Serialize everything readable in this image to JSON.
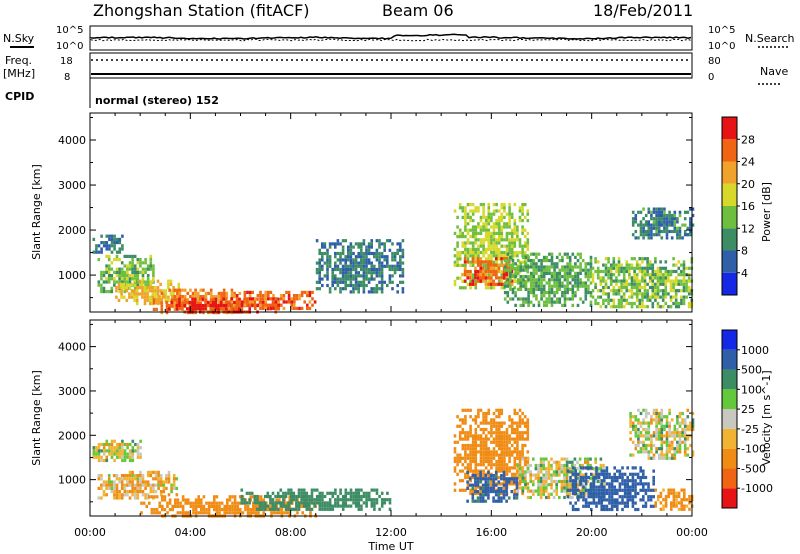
{
  "header": {
    "station": "Zhongshan Station (fitACF)",
    "beam": "Beam 06",
    "date": "18/Feb/2011"
  },
  "strip_panels": {
    "nsky_label": "N.Sky",
    "nsky_ticks": [
      "10^5",
      "10^0"
    ],
    "nsearch_label": "N.Search",
    "nsearch_ticks": [
      "10^5",
      "10^0"
    ],
    "freq_label_line1": "Freq.",
    "freq_label_line2": "[MHz]",
    "freq_ticks": [
      "18",
      "8"
    ],
    "nave_label": "Nave",
    "nave_ticks": [
      "80",
      "0"
    ],
    "cpid_label": "CPID",
    "cpid_text": "normal (stereo) 152"
  },
  "axes": {
    "xlabel": "Time UT",
    "ylabel": "Slant Range [km]",
    "x_ticks": [
      "00:00",
      "04:00",
      "08:00",
      "12:00",
      "16:00",
      "20:00",
      "00:00"
    ],
    "y_ticks": [
      "1000",
      "2000",
      "3000",
      "4000"
    ]
  },
  "colors": {
    "power": [
      "#1428e6",
      "#2f5fa8",
      "#3c8c64",
      "#6fbf3f",
      "#d8d82a",
      "#f0a22a",
      "#f06414",
      "#e61414"
    ],
    "velocity": [
      "#e61414",
      "#f06414",
      "#f08c14",
      "#f0b432",
      "#c8c8c0",
      "#64c83c",
      "#3c8c64",
      "#2f5fa8",
      "#1428e6"
    ]
  },
  "chart_data": [
    {
      "type": "heatmap",
      "title": "Power",
      "xlabel": "Time UT",
      "ylabel": "Slant Range [km]",
      "x_range_hours": [
        0,
        24
      ],
      "y_range_km": [
        180,
        4600
      ],
      "colorbar_label": "Power [dB]",
      "colorbar_ticks": [
        "4",
        "8",
        "12",
        "16",
        "20",
        "24",
        "28"
      ],
      "colorbar_range": [
        0,
        32
      ],
      "regions": [
        {
          "t": [
            0.1,
            1.3
          ],
          "r": [
            1500,
            1900
          ],
          "v": 8
        },
        {
          "t": [
            0.3,
            2.5
          ],
          "r": [
            650,
            1450
          ],
          "v": 14
        },
        {
          "t": [
            1.0,
            3.5
          ],
          "r": [
            400,
            900
          ],
          "v": 20
        },
        {
          "t": [
            2.5,
            6.0
          ],
          "r": [
            200,
            700
          ],
          "v": 24
        },
        {
          "t": [
            3.0,
            7.5
          ],
          "r": [
            200,
            500
          ],
          "v": 29
        },
        {
          "t": [
            5.5,
            9.0
          ],
          "r": [
            250,
            650
          ],
          "v": 26
        },
        {
          "t": [
            9.0,
            12.5
          ],
          "r": [
            600,
            1800
          ],
          "v": 8
        },
        {
          "t": [
            14.5,
            17.5
          ],
          "r": [
            700,
            2600
          ],
          "v": 16
        },
        {
          "t": [
            14.8,
            16.8
          ],
          "r": [
            800,
            1400
          ],
          "v": 26
        },
        {
          "t": [
            16.5,
            20.0
          ],
          "r": [
            300,
            1500
          ],
          "v": 12
        },
        {
          "t": [
            20.0,
            24.0
          ],
          "r": [
            300,
            1400
          ],
          "v": 14
        },
        {
          "t": [
            21.5,
            24.0
          ],
          "r": [
            1800,
            2500
          ],
          "v": 9
        }
      ]
    },
    {
      "type": "heatmap",
      "title": "Velocity",
      "xlabel": "Time UT",
      "ylabel": "Slant Range [km]",
      "x_range_hours": [
        0,
        24
      ],
      "y_range_km": [
        180,
        4600
      ],
      "colorbar_label": "Velocity [m s^-1]",
      "colorbar_ticks": [
        "1000",
        "500",
        "100",
        "25",
        "-25",
        "-100",
        "-500",
        "-1000"
      ],
      "regions": [
        {
          "t": [
            0.1,
            2.0
          ],
          "r": [
            1400,
            1900
          ],
          "v": 0
        },
        {
          "t": [
            0.3,
            3.5
          ],
          "r": [
            600,
            1200
          ],
          "v": -80
        },
        {
          "t": [
            2.0,
            9.0
          ],
          "r": [
            200,
            650
          ],
          "v": -300
        },
        {
          "t": [
            6.0,
            12.0
          ],
          "r": [
            300,
            800
          ],
          "v": 300
        },
        {
          "t": [
            14.5,
            17.5
          ],
          "r": [
            700,
            2600
          ],
          "v": -300
        },
        {
          "t": [
            15.0,
            17.0
          ],
          "r": [
            500,
            1200
          ],
          "v": 600
        },
        {
          "t": [
            17.0,
            20.5
          ],
          "r": [
            600,
            1500
          ],
          "v": 0
        },
        {
          "t": [
            19.0,
            22.5
          ],
          "r": [
            300,
            1300
          ],
          "v": 700
        },
        {
          "t": [
            21.5,
            24.0
          ],
          "r": [
            1500,
            2600
          ],
          "v": 0
        },
        {
          "t": [
            22.5,
            24.0
          ],
          "r": [
            300,
            800
          ],
          "v": -200
        }
      ]
    }
  ]
}
